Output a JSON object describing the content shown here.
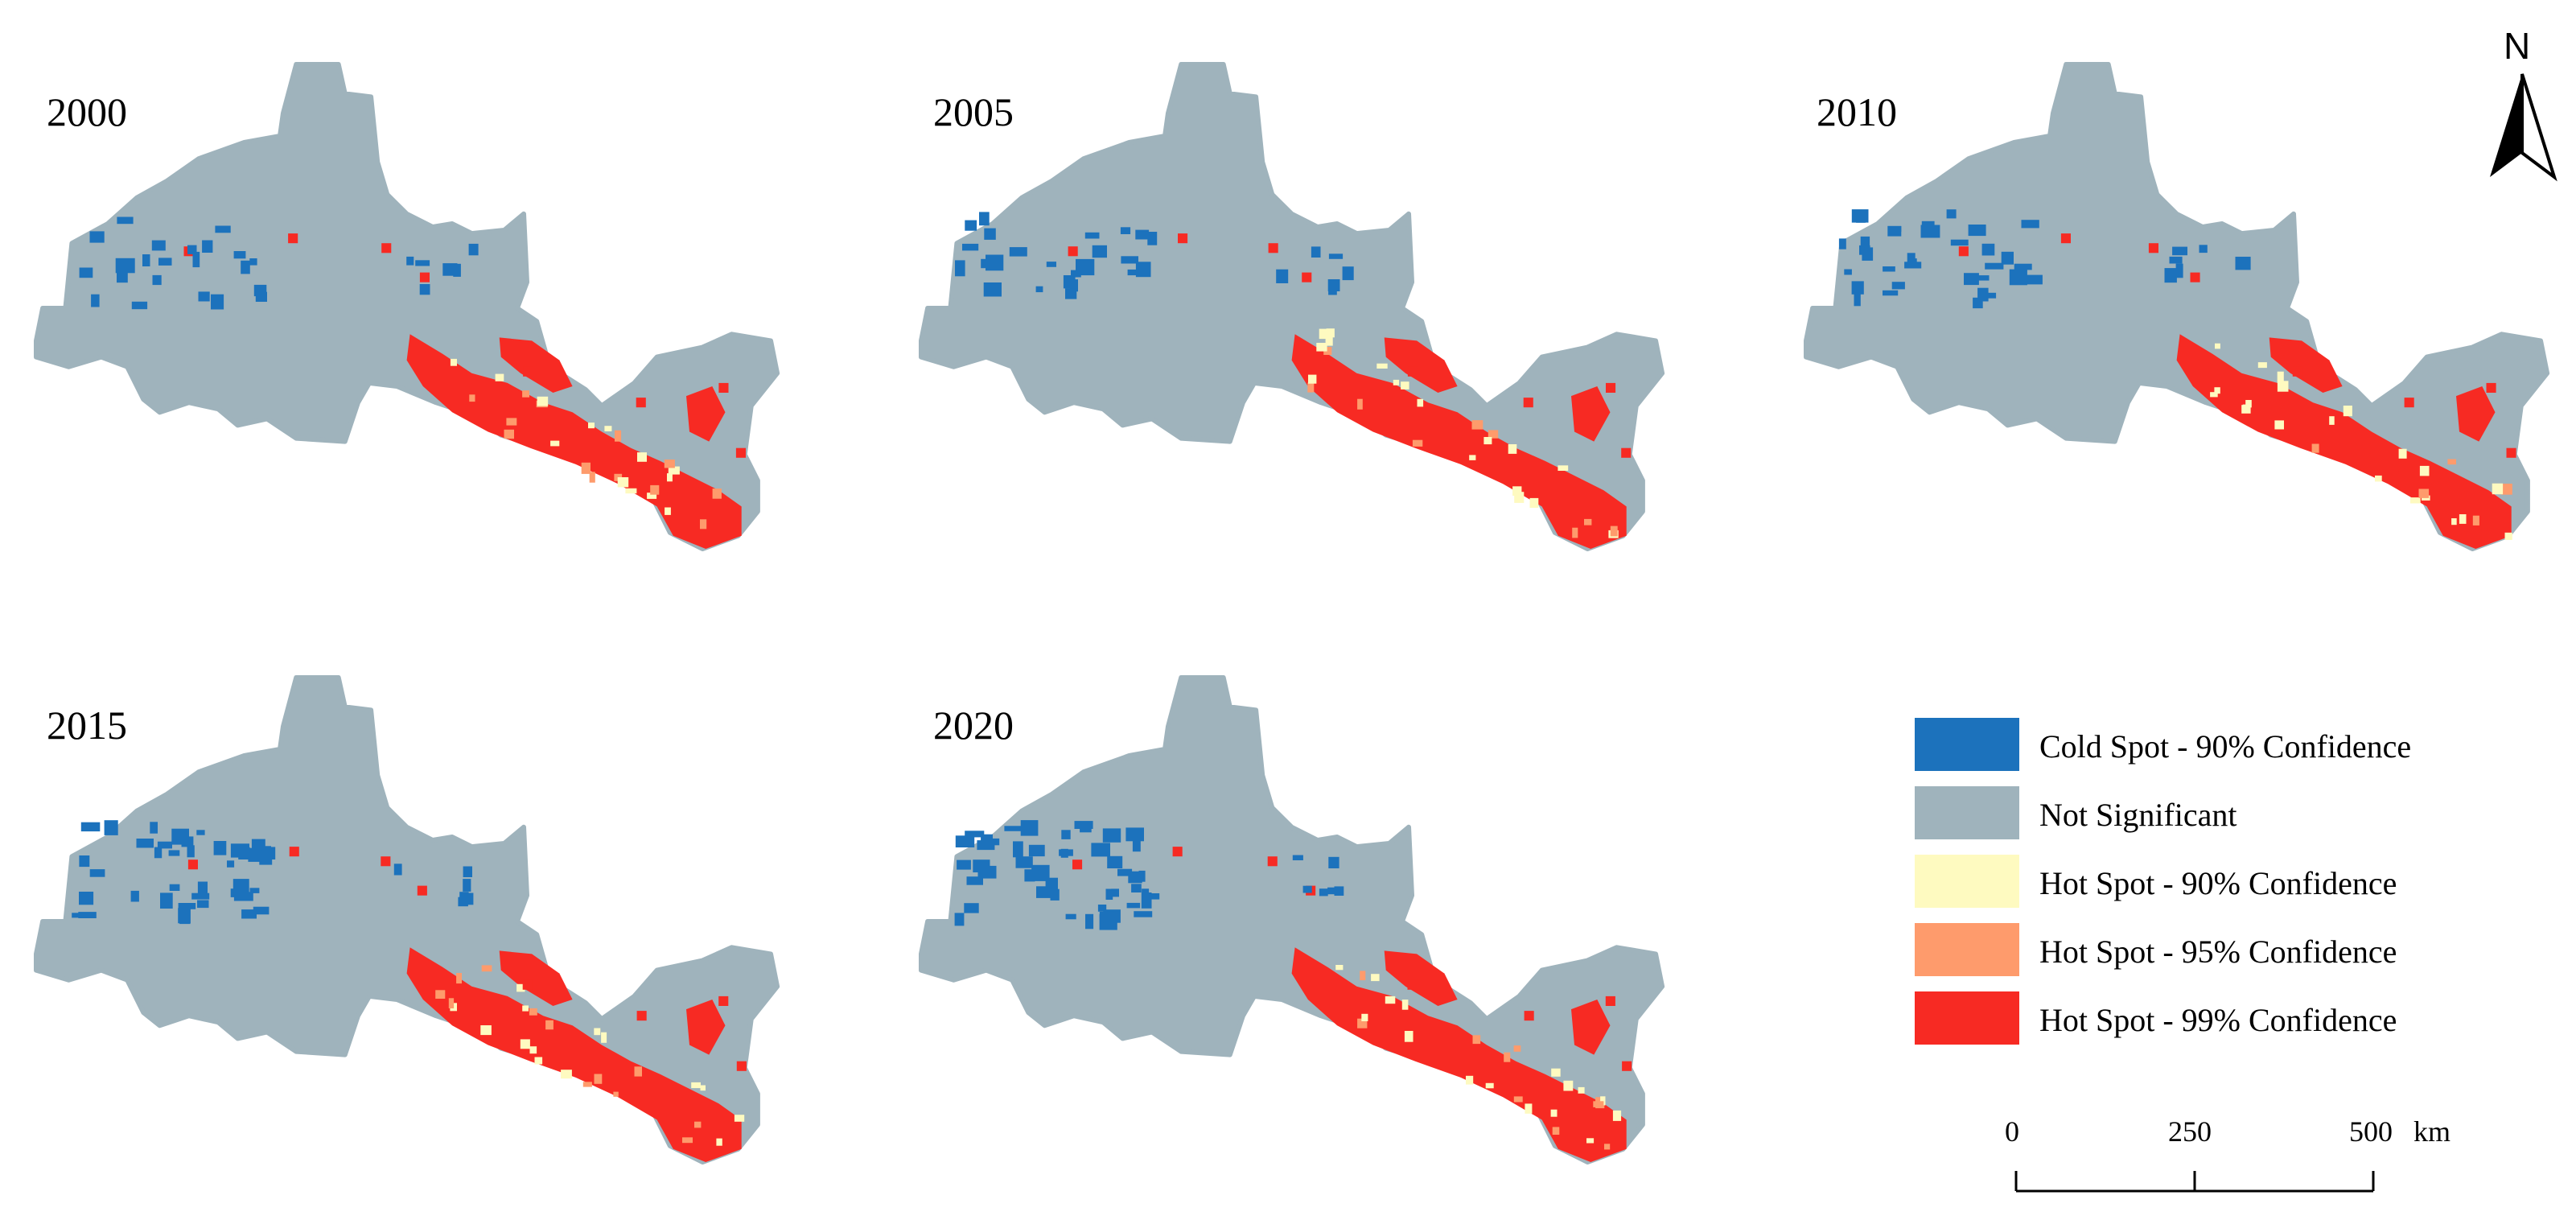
{
  "years": [
    "2000",
    "2005",
    "2010",
    "2015",
    "2020"
  ],
  "legend": [
    {
      "label": "Cold Spot - 90% Confidence",
      "color": "#1c72bc"
    },
    {
      "label": "Not Significant",
      "color": "#9fb3bc"
    },
    {
      "label": "Hot Spot - 90% Confidence",
      "color": "#fefac0"
    },
    {
      "label": "Hot Spot - 95% Confidence",
      "color": "#fe9b6c"
    },
    {
      "label": "Hot Spot - 99% Confidence",
      "color": "#f72a23"
    }
  ],
  "scale_bar": {
    "ticks": [
      "0",
      "250",
      "500"
    ],
    "unit": "km"
  },
  "north_arrow": {
    "label": "N"
  }
}
